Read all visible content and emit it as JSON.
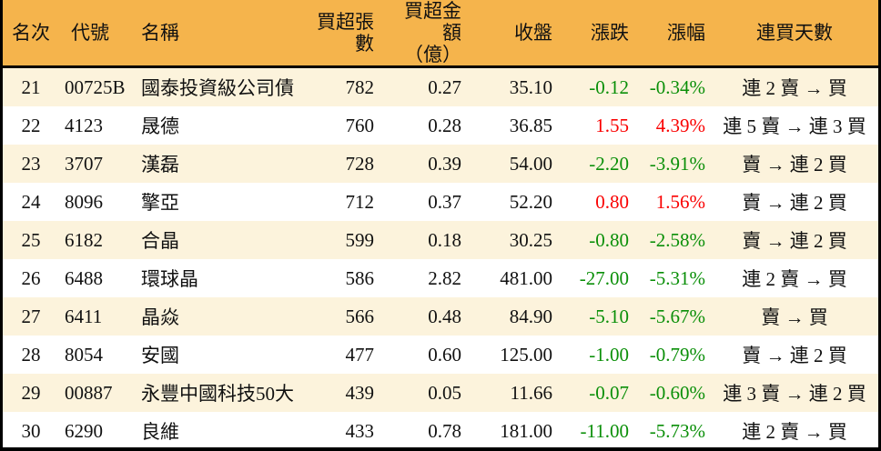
{
  "colors": {
    "header_bg": "#f5b44c",
    "stripe_bg": "#fcf3dc",
    "up_red": "#fa0000",
    "down_green": "#0a8f08",
    "border": "#000000"
  },
  "chart_data": {
    "type": "table",
    "title": "",
    "columns": [
      {
        "label": "名次",
        "sublabel": ""
      },
      {
        "label": "代號",
        "sublabel": ""
      },
      {
        "label": "名稱",
        "sublabel": ""
      },
      {
        "label": "買超張數",
        "sublabel": ""
      },
      {
        "label": "買超金額",
        "sublabel": "（億）"
      },
      {
        "label": "收盤",
        "sublabel": ""
      },
      {
        "label": "漲跌",
        "sublabel": ""
      },
      {
        "label": "漲幅",
        "sublabel": ""
      },
      {
        "label": "連買天數",
        "sublabel": ""
      }
    ],
    "rows": [
      {
        "rank": "21",
        "code": "00725B",
        "name": "國泰投資級公司債",
        "volume": "782",
        "amount": "0.27",
        "close": "35.10",
        "change": "-0.12",
        "change_pct": "-0.34%",
        "trend": "down",
        "streak": "連 2 賣 → 買"
      },
      {
        "rank": "22",
        "code": "4123",
        "name": "晟德",
        "volume": "760",
        "amount": "0.28",
        "close": "36.85",
        "change": "1.55",
        "change_pct": "4.39%",
        "trend": "up",
        "streak": "連 5 賣 → 連 3 買"
      },
      {
        "rank": "23",
        "code": "3707",
        "name": "漢磊",
        "volume": "728",
        "amount": "0.39",
        "close": "54.00",
        "change": "-2.20",
        "change_pct": "-3.91%",
        "trend": "down",
        "streak": "賣 → 連 2 買"
      },
      {
        "rank": "24",
        "code": "8096",
        "name": "擎亞",
        "volume": "712",
        "amount": "0.37",
        "close": "52.20",
        "change": "0.80",
        "change_pct": "1.56%",
        "trend": "up",
        "streak": "賣 → 連 2 買"
      },
      {
        "rank": "25",
        "code": "6182",
        "name": "合晶",
        "volume": "599",
        "amount": "0.18",
        "close": "30.25",
        "change": "-0.80",
        "change_pct": "-2.58%",
        "trend": "down",
        "streak": "賣 → 連 2 買"
      },
      {
        "rank": "26",
        "code": "6488",
        "name": "環球晶",
        "volume": "586",
        "amount": "2.82",
        "close": "481.00",
        "change": "-27.00",
        "change_pct": "-5.31%",
        "trend": "down",
        "streak": "連 2 賣 → 買"
      },
      {
        "rank": "27",
        "code": "6411",
        "name": "晶焱",
        "volume": "566",
        "amount": "0.48",
        "close": "84.90",
        "change": "-5.10",
        "change_pct": "-5.67%",
        "trend": "down",
        "streak": "賣 → 買"
      },
      {
        "rank": "28",
        "code": "8054",
        "name": "安國",
        "volume": "477",
        "amount": "0.60",
        "close": "125.00",
        "change": "-1.00",
        "change_pct": "-0.79%",
        "trend": "down",
        "streak": "賣 → 連 2 買"
      },
      {
        "rank": "29",
        "code": "00887",
        "name": "永豐中國科技50大",
        "volume": "439",
        "amount": "0.05",
        "close": "11.66",
        "change": "-0.07",
        "change_pct": "-0.60%",
        "trend": "down",
        "streak": "連 3 賣 → 連 2 買"
      },
      {
        "rank": "30",
        "code": "6290",
        "name": "良維",
        "volume": "433",
        "amount": "0.78",
        "close": "181.00",
        "change": "-11.00",
        "change_pct": "-5.73%",
        "trend": "down",
        "streak": "連 2 賣 → 買"
      }
    ]
  }
}
